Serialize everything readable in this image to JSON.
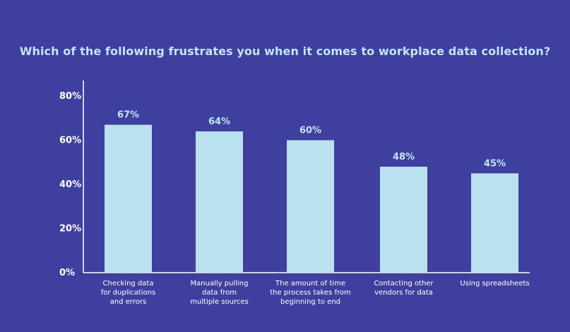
{
  "chart_data": {
    "type": "bar",
    "title": "Which of the following frustrates you when it comes to workplace data collection?",
    "categories": [
      [
        "Checking data",
        "for duplications",
        "and errors"
      ],
      [
        "Manually pulling",
        "data from",
        "multiple sources"
      ],
      [
        "The amount of time",
        "the process takes from",
        "beginning to end"
      ],
      [
        "Contacting other",
        "vendors for data"
      ],
      [
        "Using spreadsheets"
      ]
    ],
    "values": [
      67,
      64,
      60,
      48,
      45
    ],
    "data_labels": [
      "67%",
      "64%",
      "60%",
      "48%",
      "45%"
    ],
    "ylim": [
      0,
      80
    ],
    "yticks": [
      0,
      20,
      40,
      60,
      80
    ],
    "ytick_labels": [
      "0%",
      "20%",
      "40%",
      "60%",
      "80%"
    ],
    "grid": false,
    "colors": {
      "background": "#3f3f9f",
      "bar": "#b9e1ef",
      "title": "#bfe6f5",
      "axis": "#ffffff",
      "data_label": "#bfe6f5"
    }
  }
}
